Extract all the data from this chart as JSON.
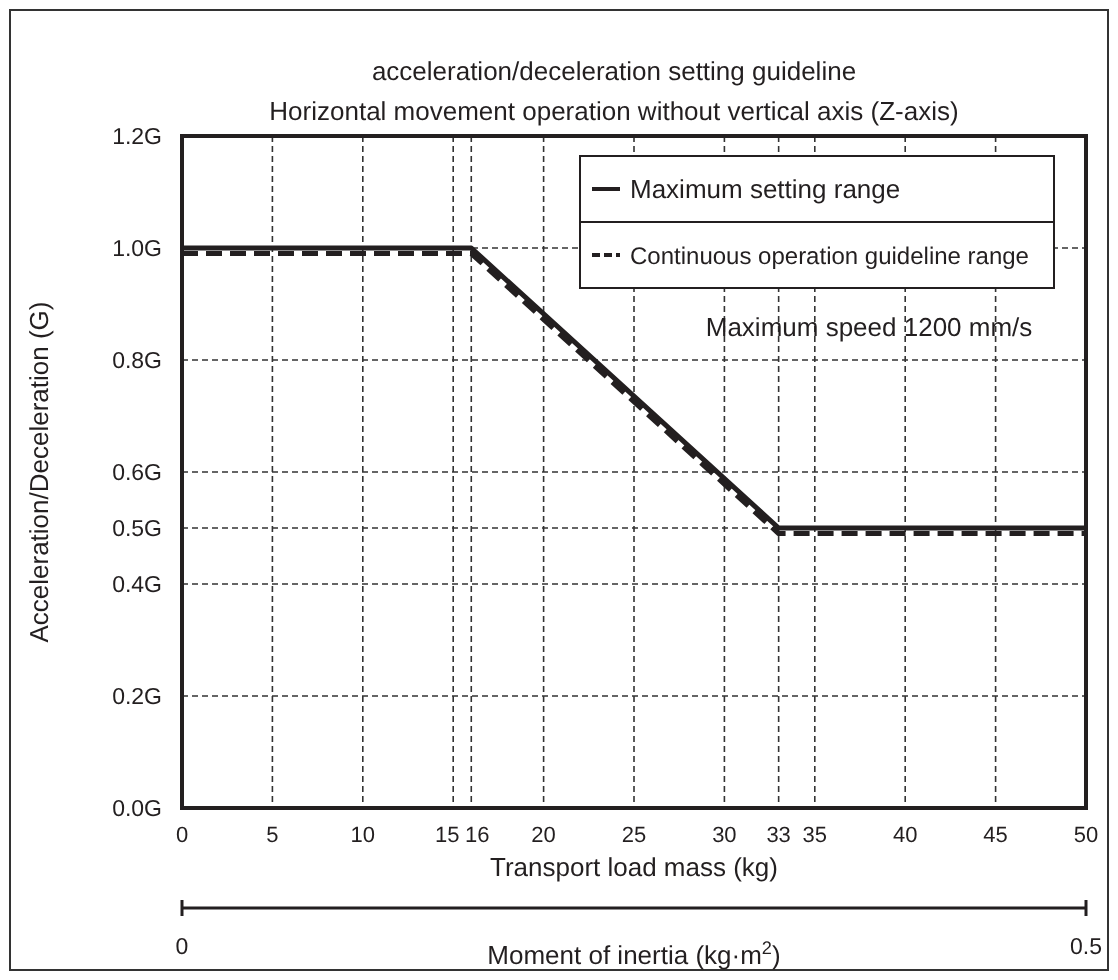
{
  "chart_data": {
    "type": "line",
    "title": "acceleration/deceleration setting guideline",
    "subtitle": "Horizontal movement operation without vertical axis (Z-axis)",
    "xlabel": "Transport load mass (kg)",
    "ylabel": "Acceleration/Deceleration (G)",
    "x2label": "Moment of inertia (kg·m$^{2}$)",
    "x2lim": [
      0,
      0.5
    ],
    "x2ticks": [
      0,
      0.5
    ],
    "x": [
      0,
      16,
      33,
      50
    ],
    "xlim": [
      0,
      50
    ],
    "xticks": [
      0,
      5,
      10,
      15,
      16,
      20,
      25,
      30,
      33,
      35,
      40,
      45,
      50
    ],
    "ylim": [
      0,
      1.2
    ],
    "yticks": [
      {
        "value": 0,
        "label": "0.0G"
      },
      {
        "value": 0.2,
        "label": "0.2G"
      },
      {
        "value": 0.4,
        "label": "0.4G"
      },
      {
        "value": 0.5,
        "label": "0.5G"
      },
      {
        "value": 0.6,
        "label": "0.6G"
      },
      {
        "value": 0.8,
        "label": "0.8G"
      },
      {
        "value": 1.0,
        "label": "1.0G"
      },
      {
        "value": 1.2,
        "label": "1.2G"
      }
    ],
    "series": [
      {
        "name": "Maximum setting range",
        "color": "#231f20",
        "values": [
          1.0,
          1.0,
          0.5,
          0.5
        ],
        "line_style": "solid"
      },
      {
        "name": "Continuous operation guideline range",
        "color": "#231f20",
        "values": [
          0.99,
          0.99,
          0.49,
          0.49
        ],
        "line_style": "dashed"
      }
    ],
    "annotations": [
      "Maximum speed 1200 mm/s"
    ],
    "grid": true,
    "legend": "top right",
    "marker": "none"
  }
}
